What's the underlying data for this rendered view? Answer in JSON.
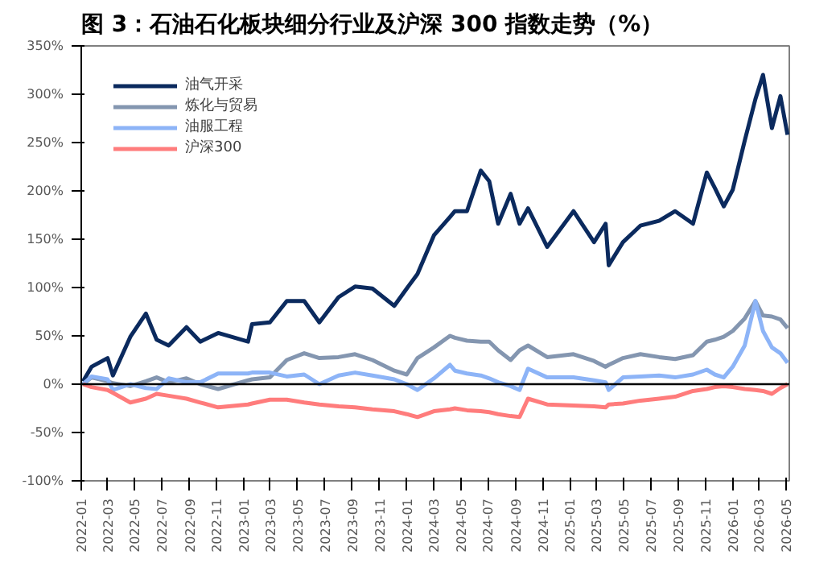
{
  "chart_data": {
    "type": "line",
    "title": "图 3：石油石化板块细分行业及沪深 300 指数走势（%）",
    "x": [
      "2022-01-05",
      "2022-01-24",
      "2022-03-01",
      "2022-03-13",
      "2022-04-21",
      "2022-05-26",
      "2022-06-19",
      "2022-07-16",
      "2022-08-25",
      "2022-09-25",
      "2022-11-04",
      "2023-01-10",
      "2023-01-19",
      "2023-02-28",
      "2023-04-07",
      "2023-05-16",
      "2023-06-19",
      "2023-08-01",
      "2023-09-07",
      "2023-10-16",
      "2023-12-04",
      "2024-01-01",
      "2024-01-25",
      "2024-03-02",
      "2024-04-07",
      "2024-04-18",
      "2024-05-15",
      "2024-06-15",
      "2024-07-04",
      "2024-07-24",
      "2024-08-21",
      "2024-09-10",
      "2024-09-29",
      "2024-11-11",
      "2025-01-09",
      "2025-02-24",
      "2025-03-22",
      "2025-03-29",
      "2025-04-30",
      "2025-06-08",
      "2025-07-20",
      "2025-08-25",
      "2025-10-04",
      "2025-11-04",
      "2025-11-22",
      "2025-12-12",
      "2026-01-01",
      "2026-01-28",
      "2026-02-21",
      "2026-03-10",
      "2026-03-30",
      "2026-04-18",
      "2026-05-04"
    ],
    "series": [
      {
        "name": "油气开采",
        "color": "#0b2a5e",
        "values": [
          3,
          18,
          27,
          9,
          49,
          73,
          46,
          40,
          59,
          44,
          53,
          44,
          62,
          64,
          86,
          86,
          64,
          90,
          101,
          99,
          81,
          99,
          114,
          154,
          173,
          179,
          179,
          221,
          210,
          166,
          197,
          166,
          182,
          142,
          179,
          147,
          166,
          123,
          147,
          164,
          169,
          179,
          166,
          219,
          203,
          184,
          201,
          252,
          295,
          320,
          265,
          298,
          258
        ]
      },
      {
        "name": "炼化与贸易",
        "color": "#8496b0",
        "values": [
          0,
          7,
          3,
          1,
          -2,
          3,
          7,
          2,
          6,
          0,
          -5,
          4,
          5,
          7,
          25,
          32,
          27,
          28,
          31,
          25,
          14,
          10,
          27,
          38,
          50,
          48,
          45,
          44,
          44,
          35,
          25,
          35,
          40,
          28,
          31,
          24,
          18,
          20,
          27,
          31,
          28,
          26,
          30,
          44,
          46,
          49,
          55,
          68,
          86,
          71,
          70,
          67,
          58
        ]
      },
      {
        "name": "油服工程",
        "color": "#8db4f7",
        "values": [
          0,
          8,
          5,
          -6,
          0,
          -4,
          -5,
          6,
          2,
          2,
          11,
          11,
          12,
          12,
          8,
          10,
          0,
          9,
          12,
          9,
          5,
          0,
          -6,
          6,
          20,
          14,
          11,
          9,
          6,
          2,
          -2,
          -6,
          16,
          7,
          7,
          4,
          2,
          -6,
          7,
          8,
          9,
          7,
          10,
          15,
          10,
          7,
          18,
          40,
          86,
          55,
          38,
          32,
          22
        ]
      },
      {
        "name": "沪深300",
        "color": "#ff7c7c",
        "values": [
          0,
          -3,
          -6,
          -9,
          -19,
          -15,
          -10,
          -12,
          -15,
          -19,
          -24,
          -21,
          -20,
          -16,
          -16,
          -19,
          -21,
          -23,
          -24,
          -26,
          -28,
          -31,
          -34,
          -28,
          -26,
          -25,
          -27,
          -28,
          -29,
          -31,
          -33,
          -34,
          -15,
          -21,
          -22,
          -23,
          -24,
          -21,
          -20,
          -17,
          -15,
          -13,
          -7,
          -5,
          -3,
          -2,
          -3,
          -5,
          -6,
          -7,
          -10,
          -4,
          0
        ]
      }
    ],
    "xlim": [
      "2022-01-01",
      "2026-05-08"
    ],
    "xticks": [
      "2022-01",
      "2022-03",
      "2022-05",
      "2022-07",
      "2022-09",
      "2022-11",
      "2023-01",
      "2023-03",
      "2023-05",
      "2023-07",
      "2023-09",
      "2023-11",
      "2024-01",
      "2024-03",
      "2024-05",
      "2024-07",
      "2024-09",
      "2024-11",
      "2025-01",
      "2025-03",
      "2025-05",
      "2025-07",
      "2025-09",
      "2025-11",
      "2026-01",
      "2026-03",
      "2026-05"
    ],
    "ylim": [
      -100,
      350
    ],
    "yticks": [
      {
        "value": -100,
        "label": "-100%"
      },
      {
        "value": -50,
        "label": "-50%"
      },
      {
        "value": 0,
        "label": "0%"
      },
      {
        "value": 50,
        "label": "50%"
      },
      {
        "value": 100,
        "label": "100%"
      },
      {
        "value": 150,
        "label": "150%"
      },
      {
        "value": 200,
        "label": "200%"
      },
      {
        "value": 250,
        "label": "250%"
      },
      {
        "value": 300,
        "label": "300%"
      },
      {
        "value": 350,
        "label": "350%"
      }
    ],
    "ref_lines": [
      {
        "axis": "y",
        "value": 0,
        "color": "#000000"
      }
    ],
    "grid": false,
    "legend": "top left",
    "line_style": "solid",
    "marker": "none"
  }
}
